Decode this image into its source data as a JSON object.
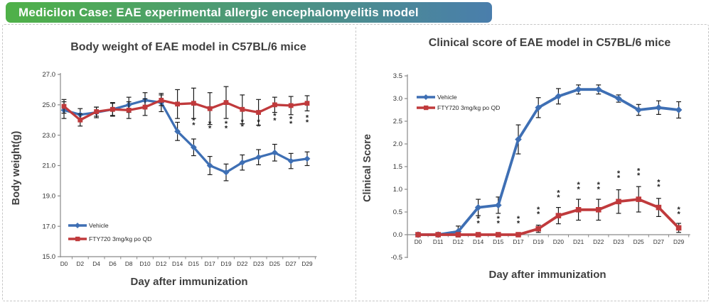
{
  "header": {
    "title": "Medicilon Case: EAE experimental allergic encephalomyelitis model",
    "gradient_from": "#4fb148",
    "gradient_to": "#4a7eac"
  },
  "colors": {
    "vehicle_blue": "#3e6fb4",
    "fty720_red": "#c03a3c",
    "axis_line": "#8a8a8a",
    "error_bar": "#1a1a1a",
    "tick_text": "#333333",
    "title_text": "#3f3f3f",
    "sig_mark": "#222222"
  },
  "chart_data": [
    {
      "type": "line",
      "title": "Body weight of EAE model in C57BL/6 mice",
      "ylabel": "Body weight(g)",
      "xlabel": "Day after immunization",
      "ylim": [
        15.0,
        27.0
      ],
      "yticks": [
        "15.0",
        "17.0",
        "19.0",
        "21.0",
        "23.0",
        "25.0",
        "27.0"
      ],
      "grid": false,
      "legend_position": "bottom-left",
      "categories": [
        "D0",
        "D2",
        "D4",
        "D6",
        "D8",
        "D10",
        "D12",
        "D14",
        "D15",
        "D17",
        "D19",
        "D22",
        "D23",
        "D25",
        "D27",
        "D29"
      ],
      "series": [
        {
          "name": "Vehicle",
          "color": "#3e6fb4",
          "marker": "diamond",
          "values": [
            24.65,
            24.35,
            24.5,
            24.7,
            25.0,
            25.3,
            25.15,
            23.25,
            22.2,
            21.0,
            20.55,
            21.2,
            21.55,
            21.85,
            21.3,
            21.45
          ],
          "errors": [
            0.55,
            0.4,
            0.35,
            0.4,
            0.5,
            0.5,
            0.6,
            0.6,
            0.55,
            0.6,
            0.55,
            0.5,
            0.5,
            0.55,
            0.5,
            0.45
          ]
        },
        {
          "name": "FTY720 3mg/kg po QD",
          "color": "#c03a3c",
          "marker": "square",
          "values": [
            24.9,
            24.0,
            24.55,
            24.7,
            24.65,
            24.85,
            25.3,
            25.05,
            25.1,
            24.75,
            25.15,
            24.7,
            24.5,
            25.0,
            24.95,
            25.1
          ],
          "errors": [
            0.45,
            0.4,
            0.3,
            0.45,
            0.55,
            0.55,
            0.35,
            0.95,
            1.0,
            1.05,
            1.05,
            0.95,
            0.85,
            0.5,
            0.6,
            0.5
          ]
        }
      ],
      "sig_marks": {
        "symbol": "**",
        "positions": [
          {
            "category": "D15",
            "y": 23.8
          },
          {
            "category": "D17",
            "y": 23.6
          },
          {
            "category": "D19",
            "y": 23.6
          },
          {
            "category": "D22",
            "y": 23.7
          },
          {
            "category": "D23",
            "y": 23.7
          },
          {
            "category": "D25",
            "y": 24.1
          },
          {
            "category": "D27",
            "y": 23.9
          },
          {
            "category": "D29",
            "y": 24.0
          }
        ]
      }
    },
    {
      "type": "line",
      "title": "Clinical score of EAE model in C57BL/6 mice",
      "ylabel": "Clinical Score",
      "xlabel": "Day after immunization",
      "ylim": [
        -0.5,
        3.5
      ],
      "yticks": [
        "-0.5",
        "0.0",
        "0.5",
        "1.0",
        "1.5",
        "2.0",
        "2.5",
        "3.0",
        "3.5"
      ],
      "x_axis_cross": 0.0,
      "grid": false,
      "legend_position": "top-left",
      "categories": [
        "D0",
        "D11",
        "D12",
        "D14",
        "D15",
        "D17",
        "D19",
        "D20",
        "D21",
        "D22",
        "D23",
        "D25",
        "D27",
        "D29"
      ],
      "series": [
        {
          "name": "Vehicle",
          "color": "#3e6fb4",
          "marker": "diamond",
          "values": [
            0,
            0,
            0.07,
            0.6,
            0.65,
            2.1,
            2.8,
            3.05,
            3.2,
            3.2,
            3.0,
            2.75,
            2.8,
            2.75
          ],
          "errors": [
            0,
            0,
            0.12,
            0.18,
            0.18,
            0.32,
            0.22,
            0.17,
            0.1,
            0.1,
            0.08,
            0.12,
            0.15,
            0.18
          ]
        },
        {
          "name": "FTY720 3mg/kg po QD",
          "color": "#c03a3c",
          "marker": "square",
          "values": [
            0,
            0,
            0,
            0,
            0,
            0,
            0.13,
            0.42,
            0.55,
            0.55,
            0.73,
            0.78,
            0.6,
            0.15
          ],
          "errors": [
            0,
            0,
            0,
            0,
            0,
            0,
            0.08,
            0.18,
            0.23,
            0.23,
            0.26,
            0.28,
            0.2,
            0.1
          ]
        }
      ],
      "sig_marks": {
        "symbol": "**",
        "positions": [
          {
            "category": "D14",
            "y": 0.3
          },
          {
            "category": "D15",
            "y": 0.3
          },
          {
            "category": "D17",
            "y": 0.3
          },
          {
            "category": "D19",
            "y": 0.5
          },
          {
            "category": "D20",
            "y": 0.87
          },
          {
            "category": "D21",
            "y": 1.05
          },
          {
            "category": "D22",
            "y": 1.05
          },
          {
            "category": "D23",
            "y": 1.3
          },
          {
            "category": "D25",
            "y": 1.35
          },
          {
            "category": "D27",
            "y": 1.1
          },
          {
            "category": "D29",
            "y": 0.5
          }
        ]
      }
    }
  ]
}
